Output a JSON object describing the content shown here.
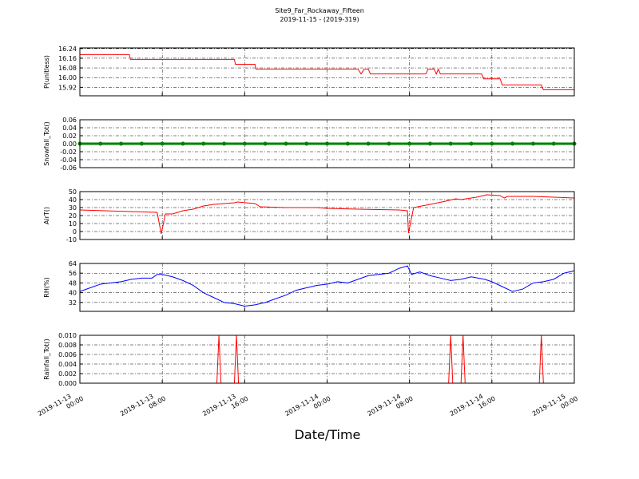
{
  "title": "Site9_Far_Rockaway_Fifteen",
  "subtitle": "2019-11-15 - (2019-319)",
  "xlabel": "Date/Time",
  "chart_data": [
    {
      "type": "line",
      "ylabel": "P(unitless)",
      "color": "#ff0000",
      "grid": true,
      "xlim": [
        "2019-11-13 00:00",
        "2019-11-15 00:00"
      ],
      "ylim": [
        15.85,
        16.245
      ],
      "yticks": [
        {
          "value": 16.24,
          "label": "16.24"
        },
        {
          "value": 16.16,
          "label": "16.16"
        },
        {
          "value": 16.08,
          "label": "16.08"
        },
        {
          "value": 16,
          "label": "16.00"
        },
        {
          "value": 15.92,
          "label": "15.92"
        }
      ],
      "x": [
        "2019-11-13 00:00",
        "2019-11-13 04:48",
        "2019-11-13 04:54",
        "2019-11-13 15:00",
        "2019-11-13 15:06",
        "2019-11-13 17:00",
        "2019-11-13 17:06",
        "2019-11-14 03:00",
        "2019-11-14 03:18",
        "2019-11-14 03:36",
        "2019-11-14 04:00",
        "2019-11-14 04:12",
        "2019-11-14 09:36",
        "2019-11-14 09:48",
        "2019-11-14 10:24",
        "2019-11-14 10:36",
        "2019-11-14 10:48",
        "2019-11-14 11:00",
        "2019-11-14 15:00",
        "2019-11-14 15:12",
        "2019-11-14 16:48",
        "2019-11-14 17:00",
        "2019-11-14 20:48",
        "2019-11-14 21:00",
        "2019-11-15 00:00"
      ],
      "values": [
        16.19,
        16.19,
        16.15,
        16.15,
        16.11,
        16.11,
        16.07,
        16.07,
        16.03,
        16.07,
        16.07,
        16.03,
        16.03,
        16.07,
        16.07,
        16.03,
        16.07,
        16.03,
        16.03,
        15.99,
        15.99,
        15.94,
        15.94,
        15.9,
        15.9
      ]
    },
    {
      "type": "line",
      "ylabel": "Snowfall_Tot()",
      "color": "#008000",
      "markers": true,
      "grid": true,
      "xlim": [
        "2019-11-13 00:00",
        "2019-11-15 00:00"
      ],
      "ylim": [
        -0.06,
        0.06
      ],
      "yticks": [
        {
          "value": 0.06,
          "label": "0.06"
        },
        {
          "value": 0.04,
          "label": "0.04"
        },
        {
          "value": 0.02,
          "label": "0.02"
        },
        {
          "value": 0,
          "label": "0.00"
        },
        {
          "value": -0.02,
          "label": "-0.02"
        },
        {
          "value": -0.04,
          "label": "-0.04"
        },
        {
          "value": -0.06,
          "label": "-0.06"
        }
      ],
      "x": [
        "2019-11-13 00:00",
        "2019-11-13 02:00",
        "2019-11-13 04:00",
        "2019-11-13 06:00",
        "2019-11-13 08:00",
        "2019-11-13 10:00",
        "2019-11-13 12:00",
        "2019-11-13 14:00",
        "2019-11-13 16:00",
        "2019-11-13 18:00",
        "2019-11-13 20:00",
        "2019-11-13 22:00",
        "2019-11-14 00:00",
        "2019-11-14 02:00",
        "2019-11-14 04:00",
        "2019-11-14 06:00",
        "2019-11-14 08:00",
        "2019-11-14 10:00",
        "2019-11-14 12:00",
        "2019-11-14 14:00",
        "2019-11-14 16:00",
        "2019-11-14 18:00",
        "2019-11-14 20:00",
        "2019-11-14 22:00",
        "2019-11-15 00:00"
      ],
      "values": [
        0,
        0,
        0,
        0,
        0,
        0,
        0,
        0,
        0,
        0,
        0,
        0,
        0,
        0,
        0,
        0,
        0,
        0,
        0,
        0,
        0,
        0,
        0,
        0,
        0
      ]
    },
    {
      "type": "line",
      "ylabel": "AirT()",
      "color": "#ff0000",
      "grid": true,
      "xlim": [
        "2019-11-13 00:00",
        "2019-11-15 00:00"
      ],
      "ylim": [
        -10,
        50
      ],
      "yticks": [
        50,
        40,
        30,
        20,
        10,
        0,
        -10
      ],
      "x": [
        "2019-11-13 00:00",
        "2019-11-13 07:30",
        "2019-11-13 07:54",
        "2019-11-13 08:18",
        "2019-11-13 09:00",
        "2019-11-13 10:00",
        "2019-11-13 11:00",
        "2019-11-13 12:00",
        "2019-11-13 13:00",
        "2019-11-13 15:00",
        "2019-11-13 15:18",
        "2019-11-13 17:00",
        "2019-11-13 17:30",
        "2019-11-13 20:00",
        "2019-11-13 23:00",
        "2019-11-14 00:00",
        "2019-11-14 03:00",
        "2019-11-14 07:00",
        "2019-11-14 07:48",
        "2019-11-14 07:54",
        "2019-11-14 08:24",
        "2019-11-14 10:00",
        "2019-11-14 11:30",
        "2019-11-14 12:30",
        "2019-11-14 13:00",
        "2019-11-14 14:30",
        "2019-11-14 15:30",
        "2019-11-14 16:48",
        "2019-11-14 17:12",
        "2019-11-14 17:30",
        "2019-11-14 20:00",
        "2019-11-15 00:00"
      ],
      "values": [
        27,
        24,
        -3,
        22,
        22,
        26,
        28,
        32,
        34,
        36,
        37,
        35,
        31,
        30,
        30,
        29,
        28,
        27,
        26,
        -2,
        30,
        34,
        38,
        41,
        40,
        43,
        46,
        45,
        42,
        44,
        44,
        42
      ]
    },
    {
      "type": "line",
      "ylabel": "RH(%)",
      "color": "#0000ff",
      "grid": true,
      "xlim": [
        "2019-11-13 00:00",
        "2019-11-15 00:00"
      ],
      "ylim": [
        24.7,
        64
      ],
      "yticks": [
        64,
        56,
        48,
        40,
        32
      ],
      "x": [
        "2019-11-13 00:00",
        "2019-11-13 01:00",
        "2019-11-13 02:00",
        "2019-11-13 03:00",
        "2019-11-13 04:00",
        "2019-11-13 05:00",
        "2019-11-13 06:00",
        "2019-11-13 07:00",
        "2019-11-13 07:30",
        "2019-11-13 08:00",
        "2019-11-13 09:00",
        "2019-11-13 10:00",
        "2019-11-13 11:00",
        "2019-11-13 12:00",
        "2019-11-13 13:00",
        "2019-11-13 14:00",
        "2019-11-13 15:00",
        "2019-11-13 16:00",
        "2019-11-13 17:00",
        "2019-11-13 18:00",
        "2019-11-13 19:00",
        "2019-11-13 20:00",
        "2019-11-13 21:00",
        "2019-11-13 22:00",
        "2019-11-13 23:00",
        "2019-11-14 00:00",
        "2019-11-14 01:00",
        "2019-11-14 02:00",
        "2019-11-14 03:00",
        "2019-11-14 04:00",
        "2019-11-14 05:00",
        "2019-11-14 06:00",
        "2019-11-14 07:00",
        "2019-11-14 07:48",
        "2019-11-14 08:12",
        "2019-11-14 09:00",
        "2019-11-14 10:00",
        "2019-11-14 11:00",
        "2019-11-14 12:00",
        "2019-11-14 13:00",
        "2019-11-14 14:00",
        "2019-11-14 15:18",
        "2019-11-14 16:00",
        "2019-11-14 17:00",
        "2019-11-14 18:00",
        "2019-11-14 19:00",
        "2019-11-14 20:00",
        "2019-11-14 21:00",
        "2019-11-14 22:00",
        "2019-11-14 23:00",
        "2019-11-15 00:00"
      ],
      "values": [
        41,
        44,
        47,
        48,
        49,
        51,
        52,
        52,
        55,
        55,
        53,
        50,
        46,
        40,
        36,
        32,
        31,
        29,
        30,
        32,
        35,
        38,
        42,
        44,
        46,
        47,
        49,
        48,
        51,
        54,
        55,
        56,
        60,
        62,
        55,
        57,
        54,
        52,
        50,
        51,
        53,
        51,
        49,
        45,
        41,
        43,
        48,
        49,
        51,
        56,
        58
      ]
    },
    {
      "type": "line",
      "ylabel": "Rainfall_Tot()",
      "color": "#ff0000",
      "grid": true,
      "xlim": [
        "2019-11-13 00:00",
        "2019-11-15 00:00"
      ],
      "ylim": [
        0,
        0.01
      ],
      "yticks": [
        {
          "value": 0.01,
          "label": "0.010"
        },
        {
          "value": 0.008,
          "label": "0.008"
        },
        {
          "value": 0.006,
          "label": "0.006"
        },
        {
          "value": 0.004,
          "label": "0.004"
        },
        {
          "value": 0.002,
          "label": "0.002"
        },
        {
          "value": 0,
          "label": "0.000"
        }
      ],
      "xticks": [
        "2019-11-13 00:00",
        "2019-11-13 08:00",
        "2019-11-13 16:00",
        "2019-11-14 00:00",
        "2019-11-14 08:00",
        "2019-11-14 16:00",
        "2019-11-15 00:00"
      ],
      "x": [
        "2019-11-13 00:00",
        "2019-11-13 13:18",
        "2019-11-13 13:30",
        "2019-11-13 13:42",
        "2019-11-13 15:00",
        "2019-11-13 15:12",
        "2019-11-13 15:24",
        "2019-11-14 11:48",
        "2019-11-14 12:00",
        "2019-11-14 12:12",
        "2019-11-14 13:00",
        "2019-11-14 13:12",
        "2019-11-14 13:24",
        "2019-11-14 20:36",
        "2019-11-14 20:48",
        "2019-11-14 21:00",
        "2019-11-15 00:00"
      ],
      "values": [
        0,
        0,
        0.01,
        0,
        0,
        0.01,
        0,
        0,
        0.01,
        0,
        0,
        0.01,
        0,
        0,
        0.01,
        0,
        0
      ]
    }
  ]
}
